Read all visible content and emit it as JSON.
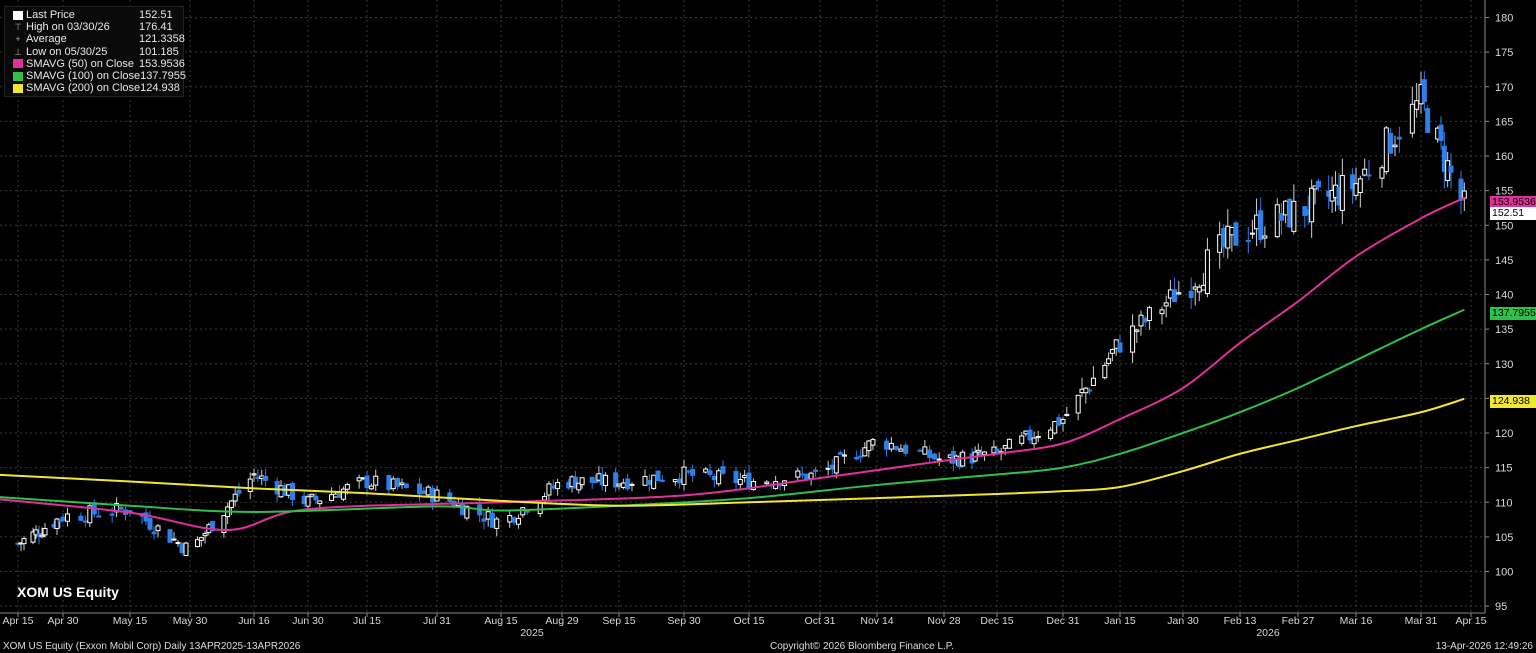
{
  "legend": [
    {
      "label": "Last Price",
      "value": "152.51",
      "color": "#ffffff",
      "symbol": "box"
    },
    {
      "label": "High on 03/30/26",
      "value": "176.41",
      "color": "#aaaaaa",
      "symbol": "high"
    },
    {
      "label": "Average",
      "value": "121.3358",
      "color": "#aaaaaa",
      "symbol": "avg"
    },
    {
      "label": "Low on 05/30/25",
      "value": "101.185",
      "color": "#aaaaaa",
      "symbol": "low"
    },
    {
      "label": "SMAVG (50)  on Close",
      "value": "153.9536",
      "color": "#e0309a",
      "symbol": "box"
    },
    {
      "label": "SMAVG (100)  on Close",
      "value": "137.7955",
      "color": "#2fbf4a",
      "symbol": "box"
    },
    {
      "label": "SMAVG (200)  on Close",
      "value": "124.938",
      "color": "#f2e633",
      "symbol": "box"
    }
  ],
  "ticker": "XOM US Equity",
  "footer": {
    "left": "XOM US Equity (Exxon Mobil Corp) Daily 13APR2025-13APR2026",
    "center": "Copyright© 2026 Bloomberg Finance L.P.",
    "right": "13-Apr-2026 12:49:26"
  },
  "price_tags": {
    "sma50": "153.9536",
    "last": "152.51",
    "sma100": "137.7955",
    "sma200": "124.938"
  },
  "chart_data": {
    "type": "candlestick",
    "ylim": [
      93,
      183
    ],
    "y_ticks": [
      95,
      100,
      105,
      110,
      115,
      120,
      125,
      130,
      135,
      140,
      145,
      150,
      155,
      160,
      165,
      170,
      175,
      180
    ],
    "x_tick_labels": [
      "Apr 15",
      "Apr 30",
      "May 15",
      "May 30",
      "Jun 16",
      "Jun 30",
      "Jul 15",
      "Jul 31",
      "Aug 15",
      "Aug 29",
      "Sep 15",
      "Sep 30",
      "Oct 15",
      "Oct 31",
      "Nov 14",
      "Nov 28",
      "Dec 15",
      "Dec 31",
      "Jan 15",
      "Jan 30",
      "Feb 13",
      "Feb 27",
      "Mar 16",
      "Mar 31",
      "Apr 15"
    ],
    "year_labels": [
      {
        "label": "2025",
        "at": "Aug 29"
      },
      {
        "label": "2026",
        "at": "Feb 27"
      }
    ],
    "close_anchors": [
      {
        "date": "Apr 15",
        "close": 104
      },
      {
        "date": "Apr 30",
        "close": 108
      },
      {
        "date": "May 15",
        "close": 109
      },
      {
        "date": "May 30",
        "close": 103
      },
      {
        "date": "Jun 16",
        "close": 114
      },
      {
        "date": "Jun 30",
        "close": 110
      },
      {
        "date": "Jul 15",
        "close": 113
      },
      {
        "date": "Jul 31",
        "close": 111
      },
      {
        "date": "Aug 15",
        "close": 107
      },
      {
        "date": "Aug 29",
        "close": 113
      },
      {
        "date": "Sep 15",
        "close": 113
      },
      {
        "date": "Sep 30",
        "close": 114
      },
      {
        "date": "Oct 15",
        "close": 113
      },
      {
        "date": "Oct 31",
        "close": 114
      },
      {
        "date": "Nov 14",
        "close": 119
      },
      {
        "date": "Nov 28",
        "close": 116
      },
      {
        "date": "Dec 15",
        "close": 117
      },
      {
        "date": "Dec 31",
        "close": 122
      },
      {
        "date": "Jan 15",
        "close": 133
      },
      {
        "date": "Jan 30",
        "close": 141
      },
      {
        "date": "Feb 13",
        "close": 149
      },
      {
        "date": "Feb 27",
        "close": 152
      },
      {
        "date": "Mar 16",
        "close": 156
      },
      {
        "date": "Mar 31",
        "close": 168
      },
      {
        "date": "Apr 13",
        "close": 152.51
      }
    ],
    "series": [
      {
        "name": "SMAVG (50)  on Close",
        "color": "#e0309a",
        "points": [
          {
            "date": "Apr 11",
            "value": 110.5
          },
          {
            "date": "May 15",
            "value": 108.5
          },
          {
            "date": "Jun 9",
            "value": 106
          },
          {
            "date": "Jun 30",
            "value": 109
          },
          {
            "date": "Aug 15",
            "value": 110
          },
          {
            "date": "Sep 30",
            "value": 111
          },
          {
            "date": "Oct 31",
            "value": 113.5
          },
          {
            "date": "Nov 28",
            "value": 116
          },
          {
            "date": "Dec 15",
            "value": 117
          },
          {
            "date": "Dec 31",
            "value": 118.5
          },
          {
            "date": "Jan 15",
            "value": 122
          },
          {
            "date": "Jan 30",
            "value": 126.5
          },
          {
            "date": "Feb 13",
            "value": 133
          },
          {
            "date": "Feb 27",
            "value": 139
          },
          {
            "date": "Mar 16",
            "value": 145.5
          },
          {
            "date": "Mar 31",
            "value": 151
          },
          {
            "date": "Apr 13",
            "value": 153.9536
          }
        ]
      },
      {
        "name": "SMAVG (100)  on Close",
        "color": "#2fbf4a",
        "points": [
          {
            "date": "Apr 11",
            "value": 110.8
          },
          {
            "date": "May 15",
            "value": 109.5
          },
          {
            "date": "Jun 16",
            "value": 108.6
          },
          {
            "date": "Jul 31",
            "value": 109.4
          },
          {
            "date": "Aug 15",
            "value": 108.8
          },
          {
            "date": "Sep 15",
            "value": 109.5
          },
          {
            "date": "Oct 15",
            "value": 110.6
          },
          {
            "date": "Nov 14",
            "value": 112.5
          },
          {
            "date": "Dec 15",
            "value": 114
          },
          {
            "date": "Dec 31",
            "value": 115
          },
          {
            "date": "Jan 15",
            "value": 117
          },
          {
            "date": "Jan 30",
            "value": 120
          },
          {
            "date": "Feb 13",
            "value": 123
          },
          {
            "date": "Feb 27",
            "value": 126.5
          },
          {
            "date": "Mar 16",
            "value": 130.5
          },
          {
            "date": "Mar 31",
            "value": 135
          },
          {
            "date": "Apr 13",
            "value": 137.7955
          }
        ]
      },
      {
        "name": "SMAVG (200)  on Close",
        "color": "#f2e633",
        "points": [
          {
            "date": "Apr 11",
            "value": 114
          },
          {
            "date": "May 15",
            "value": 113
          },
          {
            "date": "Jun 16",
            "value": 112
          },
          {
            "date": "Jul 15",
            "value": 111.3
          },
          {
            "date": "Aug 15",
            "value": 110.2
          },
          {
            "date": "Sep 15",
            "value": 109.5
          },
          {
            "date": "Oct 15",
            "value": 110
          },
          {
            "date": "Nov 14",
            "value": 110.6
          },
          {
            "date": "Dec 15",
            "value": 111.2
          },
          {
            "date": "Dec 31",
            "value": 111.6
          },
          {
            "date": "Jan 15",
            "value": 112.2
          },
          {
            "date": "Jan 30",
            "value": 114.5
          },
          {
            "date": "Feb 13",
            "value": 117
          },
          {
            "date": "Feb 27",
            "value": 119
          },
          {
            "date": "Mar 16",
            "value": 121
          },
          {
            "date": "Mar 31",
            "value": 123
          },
          {
            "date": "Apr 13",
            "value": 124.938
          }
        ]
      }
    ],
    "colors": {
      "up": "#ffffff",
      "down": "#2f7fe8",
      "grid": "#3a3a3a",
      "axis_text": "#d8d8d8"
    },
    "grid": true,
    "legend_position": "top-left"
  }
}
